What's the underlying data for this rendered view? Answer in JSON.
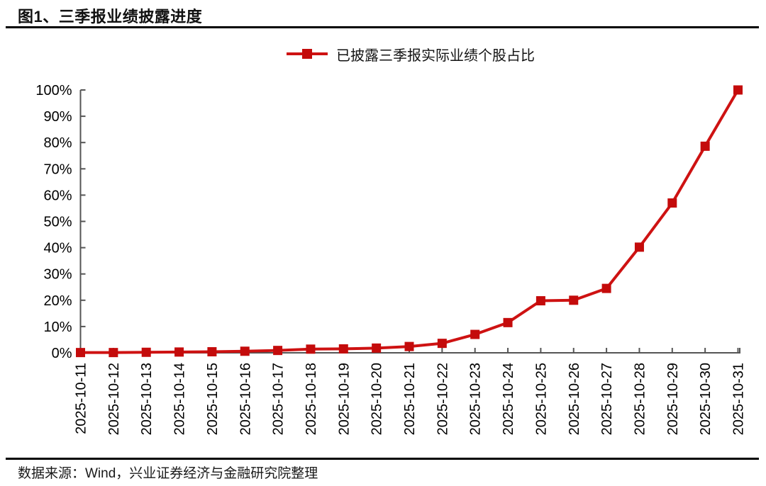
{
  "header": {
    "title": "图1、三季报业绩披露进度"
  },
  "footer": {
    "source": "数据来源：Wind，兴业证券经济与金融研究院整理"
  },
  "chart_data": {
    "type": "line",
    "title": "图1、三季报业绩披露进度",
    "legend": "已披露三季报实际业绩个股占比",
    "legend_position": "top-center",
    "x": [
      "2025-10-11",
      "2025-10-12",
      "2025-10-13",
      "2025-10-14",
      "2025-10-15",
      "2025-10-16",
      "2025-10-17",
      "2025-10-18",
      "2025-10-19",
      "2025-10-20",
      "2025-10-21",
      "2025-10-22",
      "2025-10-23",
      "2025-10-24",
      "2025-10-25",
      "2025-10-26",
      "2025-10-27",
      "2025-10-28",
      "2025-10-29",
      "2025-10-30",
      "2025-10-31"
    ],
    "series": [
      {
        "name": "已披露三季报实际业绩个股占比",
        "values": [
          0.1,
          0.1,
          0.2,
          0.3,
          0.4,
          0.6,
          0.9,
          1.4,
          1.5,
          1.8,
          2.4,
          3.6,
          7.0,
          11.5,
          19.8,
          20.0,
          24.5,
          40.2,
          57.0,
          78.6,
          100.0
        ]
      }
    ],
    "xlabel": "",
    "ylabel": "",
    "ylim": [
      0,
      100
    ],
    "ytick_step": 10,
    "ytick_suffix": "%",
    "grid": false,
    "line_color": "#CE1212",
    "marker": "square",
    "marker_color": "#C40B0B",
    "axis_color": "#555555",
    "tick_label_color": "#000000"
  }
}
